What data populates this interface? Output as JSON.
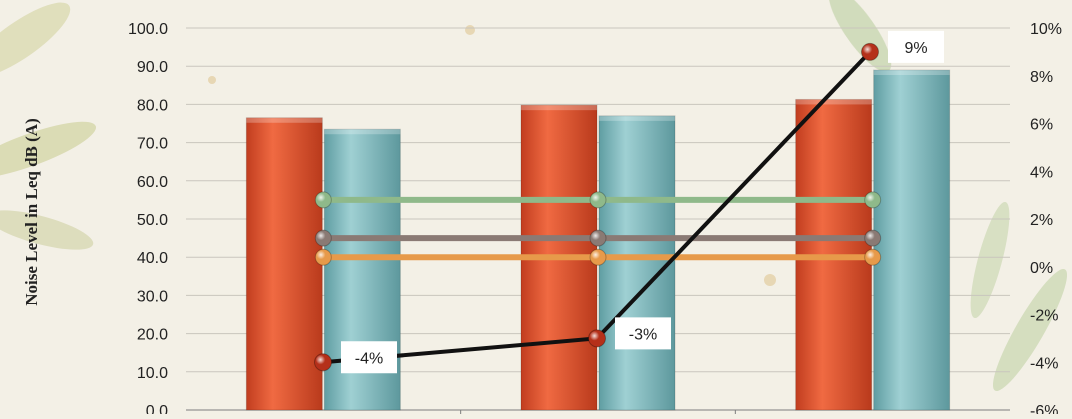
{
  "chart_data": {
    "type": "bar",
    "ylabel": "Noise Level in Leq dB (A)",
    "ylim": [
      0,
      100
    ],
    "y_ticks": [
      "100.0",
      "90.0",
      "80.0",
      "70.0",
      "60.0",
      "50.0",
      "40.0",
      "30.0",
      "20.0",
      "10.0",
      "0.0"
    ],
    "y2lim": [
      -6,
      10
    ],
    "y2_ticks": [
      "10%",
      "8%",
      "6%",
      "4%",
      "2%",
      "0%",
      "-2%",
      "-4%",
      "-6%"
    ],
    "categories": [
      "",
      "",
      ""
    ],
    "bar_series": [
      {
        "values": [
          76.5,
          79.8,
          81.3
        ],
        "color": "#e0522e"
      },
      {
        "values": [
          73.5,
          77.0,
          89.0
        ],
        "color": "#7fb5b9"
      }
    ],
    "reference_lines": [
      {
        "value": 55,
        "color": "#8fb98a"
      },
      {
        "value": 45,
        "color": "#8a7a74"
      },
      {
        "value": 40,
        "color": "#e79a4a"
      }
    ],
    "change_series": {
      "axis": "secondary",
      "values": [
        -4,
        -3,
        9
      ],
      "labels": [
        "-4%",
        "-3%",
        "9%"
      ],
      "color": "#111111",
      "marker_color": "#b5301a"
    },
    "grid": true
  }
}
